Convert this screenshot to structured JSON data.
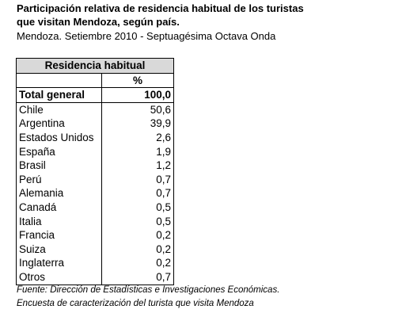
{
  "header": {
    "title_lines": [
      "Participación relativa de residencia habitual de los turistas",
      "que visitan Mendoza, según país."
    ],
    "subtitle": "Mendoza. Setiembre 2010  - Septuagésima Octava Onda"
  },
  "table": {
    "group_header": "Residencia habitual",
    "unit_header": "%",
    "total": [
      "Total general",
      "100,0"
    ],
    "rows": [
      [
        "Chile",
        "50,6"
      ],
      [
        "Argentina",
        "39,9"
      ],
      [
        "Estados Unidos",
        "2,6"
      ],
      [
        "España",
        "1,9"
      ],
      [
        "Brasil",
        "1,2"
      ],
      [
        "Perú",
        "0,7"
      ],
      [
        "Alemania",
        "0,7"
      ],
      [
        "Canadá",
        "0,5"
      ],
      [
        "Italia",
        "0,5"
      ],
      [
        "Francia",
        "0,2"
      ],
      [
        "Suiza",
        "0,2"
      ],
      [
        "Inglaterra",
        "0,2"
      ],
      [
        "Otros",
        "0,7"
      ]
    ]
  },
  "footer": {
    "notes": [
      "Fuente: Dirección de Estadísticas e Investigaciones Económicas.",
      "Encuesta de caracterización del turista que visita Mendoza"
    ]
  }
}
